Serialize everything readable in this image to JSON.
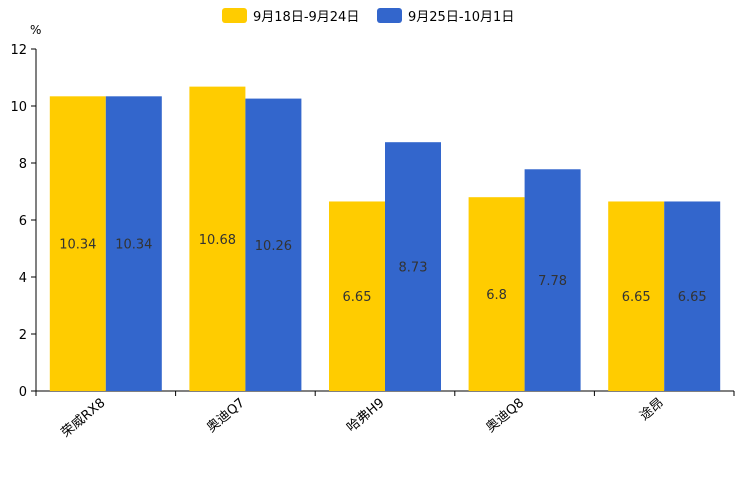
{
  "chart_data": {
    "type": "bar",
    "title": "",
    "xlabel": "",
    "ylabel": "%",
    "ylim": [
      0,
      12
    ],
    "yticks": [
      "0",
      "2",
      "4",
      "6",
      "8",
      "10",
      "12"
    ],
    "grid": false,
    "legend_position": "top-center",
    "categories": [
      "荣威RX8",
      "奥迪Q7",
      "哈弗H9",
      "奥迪Q8",
      "途昂"
    ],
    "series": [
      {
        "name": "9月18日-9月24日",
        "color": "#ffcc00",
        "values": [
          10.34,
          10.68,
          6.65,
          6.8,
          6.65
        ],
        "labels": [
          "10.34",
          "10.68",
          "6.65",
          "6.8",
          "6.65"
        ]
      },
      {
        "name": "9月25日-10月1日",
        "color": "#3366cc",
        "values": [
          10.34,
          10.26,
          8.73,
          7.78,
          6.65
        ],
        "labels": [
          "10.34",
          "10.26",
          "8.73",
          "7.78",
          "6.65"
        ]
      }
    ]
  }
}
